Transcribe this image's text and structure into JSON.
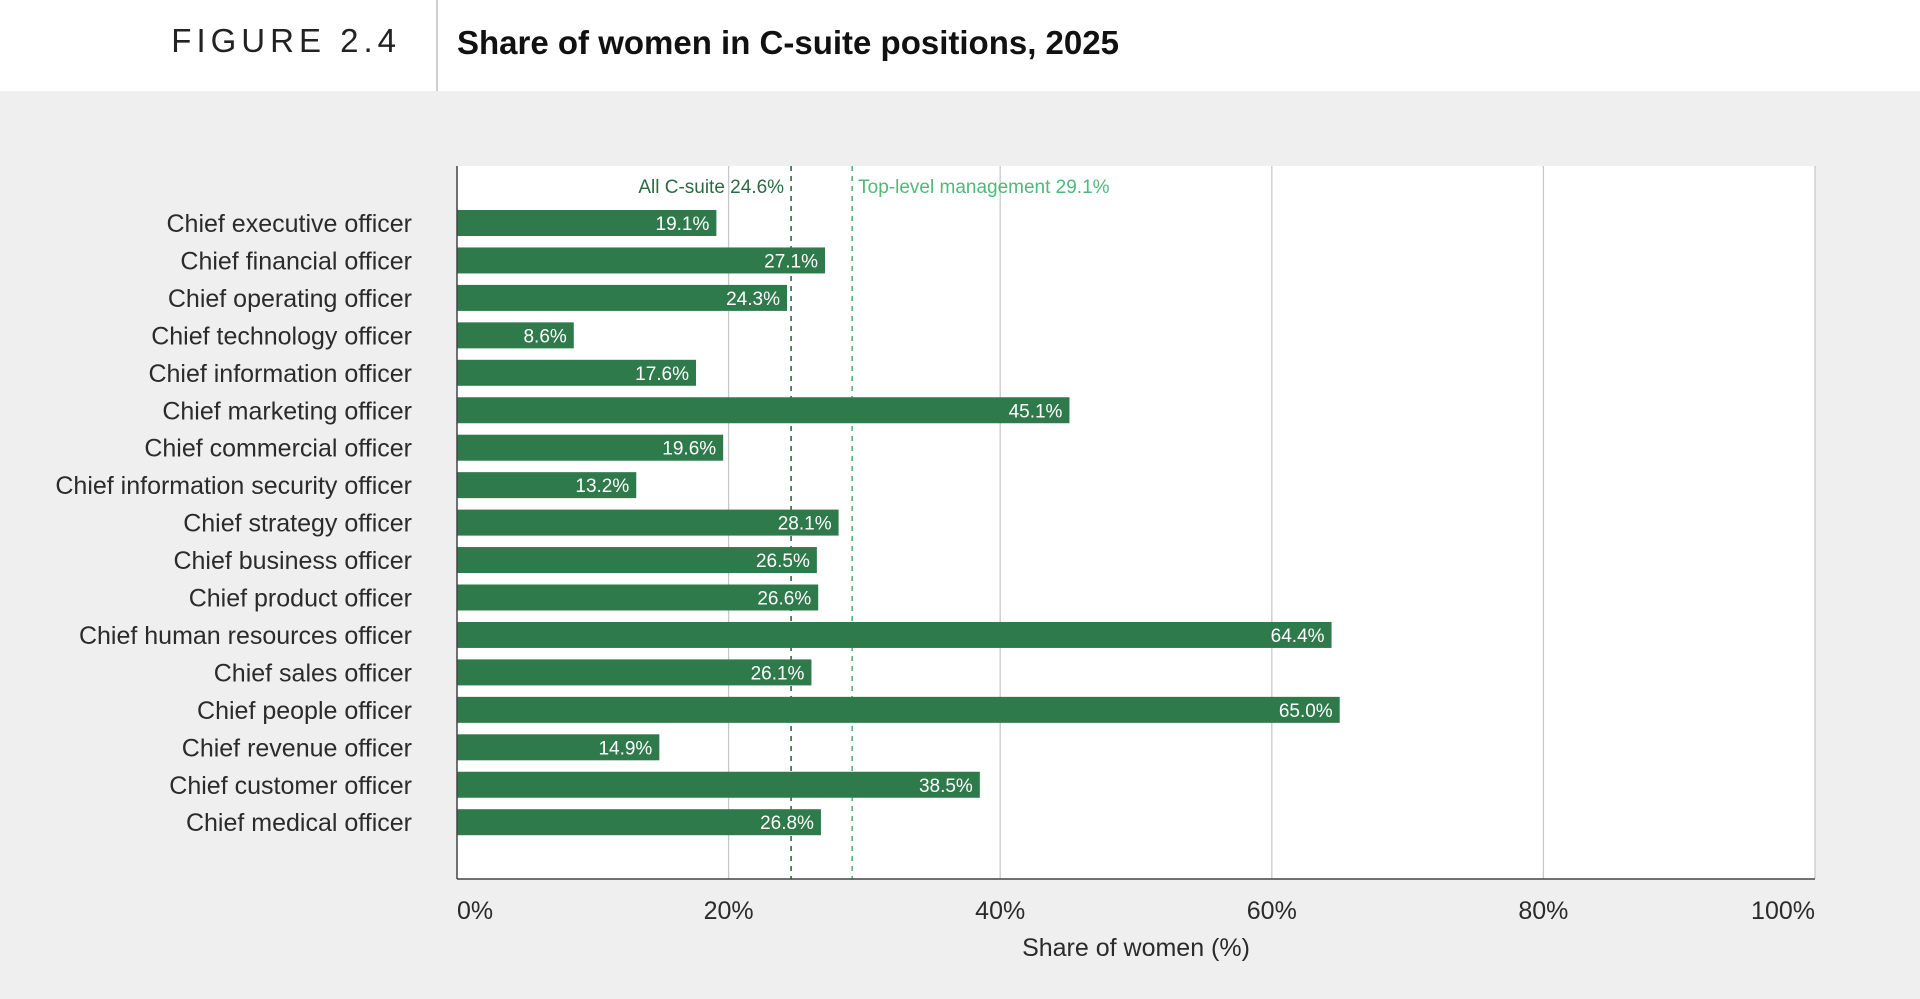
{
  "figure": {
    "label": "FIGURE 2.4",
    "title": "Share of women in C-suite positions, 2025"
  },
  "colors": {
    "bar": "#2f7a4b",
    "ref_all": "#2c6a43",
    "ref_top": "#4fb87a",
    "grid": "#c8c8c8",
    "plot_bg": "#ffffff"
  },
  "chart_data": {
    "type": "bar",
    "orientation": "horizontal",
    "title": "Share of women in C-suite positions, 2025",
    "xlabel": "Share of women (%)",
    "ylabel": "",
    "xlim": [
      0,
      100
    ],
    "xticks": [
      0,
      20,
      40,
      60,
      80,
      100
    ],
    "xtick_labels": [
      "0%",
      "20%",
      "40%",
      "60%",
      "80%",
      "100%"
    ],
    "grid": "vertical",
    "categories": [
      "Chief executive officer",
      "Chief financial officer",
      "Chief operating officer",
      "Chief technology officer",
      "Chief information officer",
      "Chief marketing officer",
      "Chief commercial officer",
      "Chief information security officer",
      "Chief strategy officer",
      "Chief business officer",
      "Chief product officer",
      "Chief human resources officer",
      "Chief sales officer",
      "Chief people officer",
      "Chief revenue officer",
      "Chief customer officer",
      "Chief medical officer"
    ],
    "values": [
      19.1,
      27.1,
      24.3,
      8.6,
      17.6,
      45.1,
      19.6,
      13.2,
      28.1,
      26.5,
      26.6,
      64.4,
      26.1,
      65.0,
      14.9,
      38.5,
      26.8
    ],
    "value_labels": [
      "19.1%",
      "27.1%",
      "24.3%",
      "8.6%",
      "17.6%",
      "45.1%",
      "19.6%",
      "13.2%",
      "28.1%",
      "26.5%",
      "26.6%",
      "64.4%",
      "26.1%",
      "65.0%",
      "14.9%",
      "38.5%",
      "26.8%"
    ],
    "reference_lines": [
      {
        "label": "All C-suite 24.6%",
        "value": 24.6,
        "label_side": "left"
      },
      {
        "label": "Top-level management 29.1%",
        "value": 29.1,
        "label_side": "right"
      }
    ]
  }
}
